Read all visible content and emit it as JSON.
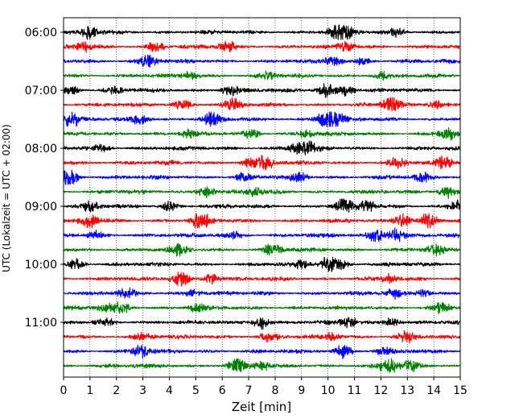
{
  "chart_data": {
    "type": "line",
    "title": "",
    "xlabel": "Zeit  [min]",
    "ylabel": "UTC (Lokalzeit = UTC + 02:00)",
    "xlim": [
      0,
      15
    ],
    "x_ticks": [
      0,
      1,
      2,
      3,
      4,
      5,
      6,
      7,
      8,
      9,
      10,
      11,
      12,
      13,
      14,
      15
    ],
    "x_tick_labels": [
      "0",
      "1",
      "2",
      "3",
      "4",
      "5",
      "6",
      "7",
      "8",
      "9",
      "10",
      "11",
      "12",
      "13",
      "14",
      "15"
    ],
    "y_tick_labels": [
      "06:00",
      "07:00",
      "08:00",
      "09:00",
      "10:00",
      "11:00"
    ],
    "traces_per_hour": 4,
    "trace_interval_minutes": 15,
    "trace_colors": [
      "#000000",
      "#ff0000",
      "#0000ff",
      "#008000"
    ],
    "grid": {
      "x": true,
      "y": false,
      "style": "dotted"
    },
    "trace_start_times": [
      "06:00",
      "06:15",
      "06:30",
      "06:45",
      "07:00",
      "07:15",
      "07:30",
      "07:45",
      "08:00",
      "08:15",
      "08:30",
      "08:45",
      "09:00",
      "09:15",
      "09:30",
      "09:45",
      "10:00",
      "10:15",
      "10:30",
      "10:45",
      "11:00",
      "11:15",
      "11:30",
      "11:45"
    ],
    "events": [
      [
        [
          1.0,
          2.0
        ],
        [
          10.3,
          2.0
        ],
        [
          10.7,
          1.8
        ],
        [
          12.6,
          1.4
        ]
      ],
      [
        [
          0.8,
          1.4
        ],
        [
          3.5,
          1.4
        ],
        [
          6.2,
          1.6
        ],
        [
          10.7,
          1.3
        ]
      ],
      [
        [
          3.2,
          2.0
        ],
        [
          10.2,
          1.5
        ],
        [
          11.3,
          1.0
        ]
      ],
      [
        [
          4.8,
          1.1
        ],
        [
          7.7,
          1.4
        ],
        [
          12.0,
          1.1
        ]
      ],
      [
        [
          0.3,
          1.2
        ],
        [
          2.0,
          1.0
        ],
        [
          6.3,
          1.6
        ],
        [
          9.9,
          2.4
        ],
        [
          10.7,
          1.6
        ]
      ],
      [
        [
          4.5,
          1.6
        ],
        [
          6.4,
          1.7
        ],
        [
          12.4,
          2.4
        ],
        [
          14.1,
          1.3
        ]
      ],
      [
        [
          0.3,
          2.3
        ],
        [
          2.9,
          1.6
        ],
        [
          5.6,
          2.6
        ],
        [
          9.9,
          2.8
        ],
        [
          10.3,
          2.4
        ]
      ],
      [
        [
          4.7,
          1.1
        ],
        [
          7.1,
          1.2
        ],
        [
          9.2,
          1.1
        ],
        [
          14.5,
          1.9
        ]
      ],
      [
        [
          1.5,
          1.2
        ],
        [
          8.8,
          1.5
        ],
        [
          9.3,
          2.2
        ]
      ],
      [
        [
          7.0,
          1.3
        ],
        [
          7.6,
          2.8
        ],
        [
          12.6,
          1.6
        ],
        [
          14.4,
          1.8
        ]
      ],
      [
        [
          0.2,
          3.0
        ],
        [
          6.8,
          1.2
        ],
        [
          8.9,
          1.5
        ],
        [
          13.6,
          1.1
        ]
      ],
      [
        [
          5.4,
          1.9
        ],
        [
          7.2,
          1.2
        ],
        [
          14.5,
          1.9
        ]
      ],
      [
        [
          1.0,
          1.7
        ],
        [
          4.0,
          1.5
        ],
        [
          10.6,
          2.4
        ],
        [
          11.5,
          1.6
        ],
        [
          14.9,
          1.8
        ]
      ],
      [
        [
          1.0,
          1.9
        ],
        [
          5.2,
          3.2
        ],
        [
          12.8,
          2.6
        ],
        [
          13.8,
          2.4
        ]
      ],
      [
        [
          1.2,
          1.3
        ],
        [
          6.5,
          1.2
        ],
        [
          11.8,
          2.2
        ],
        [
          12.6,
          2.1
        ]
      ],
      [
        [
          4.4,
          1.8
        ],
        [
          7.9,
          2.0
        ],
        [
          14.1,
          1.5
        ]
      ],
      [
        [
          0.5,
          1.7
        ],
        [
          9.0,
          1.1
        ],
        [
          10.0,
          2.2
        ],
        [
          10.5,
          1.4
        ]
      ],
      [
        [
          4.4,
          2.9
        ],
        [
          5.6,
          1.5
        ],
        [
          12.3,
          1.1
        ]
      ],
      [
        [
          2.4,
          1.5
        ],
        [
          4.9,
          1.1
        ],
        [
          12.5,
          1.3
        ],
        [
          13.6,
          1.1
        ]
      ],
      [
        [
          1.6,
          1.2
        ],
        [
          2.2,
          1.6
        ],
        [
          5.0,
          1.4
        ],
        [
          14.3,
          1.8
        ]
      ],
      [
        [
          1.6,
          1.2
        ],
        [
          7.5,
          2.2
        ],
        [
          10.8,
          1.6
        ],
        [
          12.4,
          1.6
        ]
      ],
      [
        [
          3.0,
          1.1
        ],
        [
          7.8,
          1.5
        ],
        [
          10.1,
          1.2
        ],
        [
          13.0,
          1.8
        ]
      ],
      [
        [
          2.9,
          2.0
        ],
        [
          10.6,
          2.2
        ],
        [
          12.1,
          1.1
        ]
      ],
      [
        [
          6.5,
          2.5
        ],
        [
          7.5,
          1.1
        ],
        [
          12.3,
          2.4
        ],
        [
          13.1,
          1.6
        ]
      ]
    ]
  }
}
